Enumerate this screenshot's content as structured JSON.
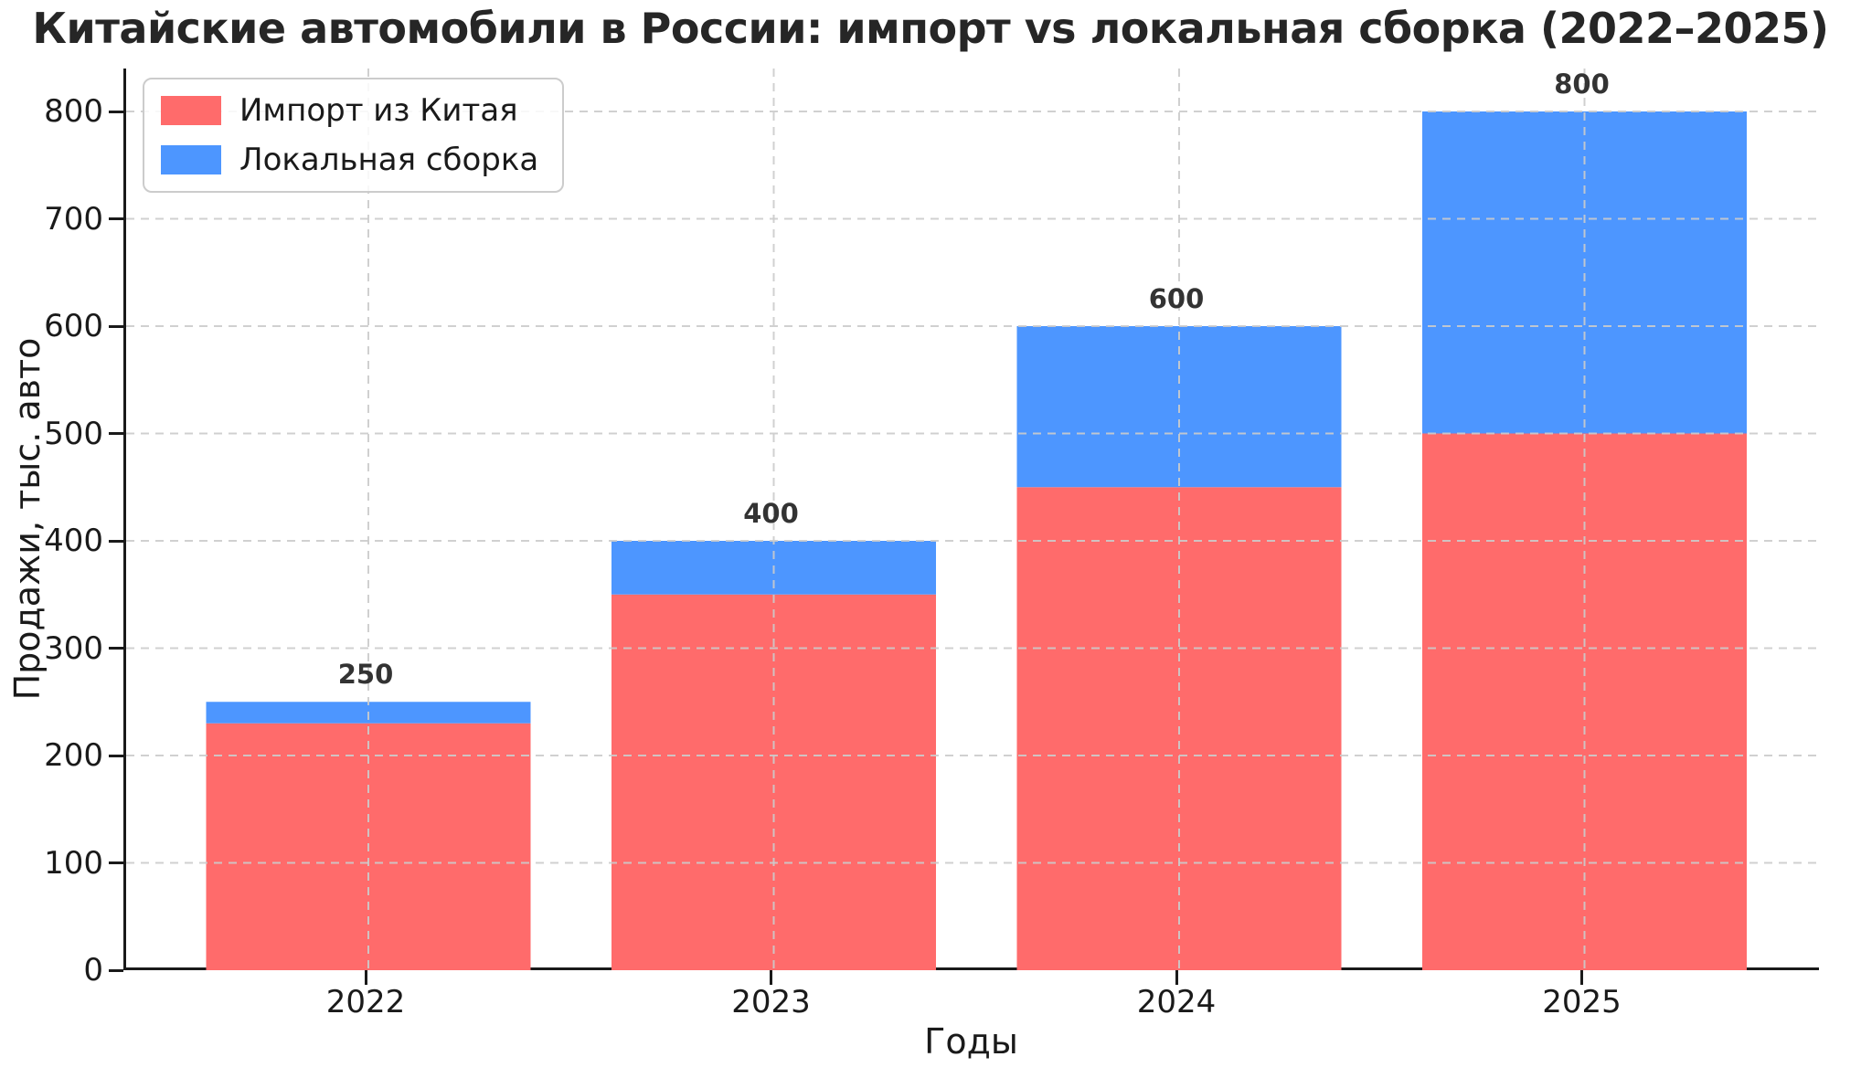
{
  "chart_data": {
    "type": "bar",
    "stacked": true,
    "title": "Китайские автомобили в России: импорт vs локальная сборка (2022–2025)",
    "xlabel": "Годы",
    "ylabel": "Продажи, тыс. авто",
    "categories": [
      "2022",
      "2023",
      "2024",
      "2025"
    ],
    "series": [
      {
        "name": "Импорт из Китая",
        "color": "#FF6B6B",
        "values": [
          230,
          350,
          450,
          500
        ]
      },
      {
        "name": "Локальная сборка",
        "color": "#4D96FF",
        "values": [
          20,
          50,
          150,
          300
        ]
      }
    ],
    "totals": [
      250,
      400,
      600,
      800
    ],
    "ylim": [
      0,
      840
    ],
    "y_ticks": [
      0,
      100,
      200,
      300,
      400,
      500,
      600,
      700,
      800
    ],
    "grid": "dashed-both-axes-above-bars",
    "legend_position": "upper-left",
    "colors": {
      "grid": "#cccccc",
      "spine": "#1a1a1a",
      "text": "#1a1a1a",
      "value_label": "#333333"
    }
  }
}
